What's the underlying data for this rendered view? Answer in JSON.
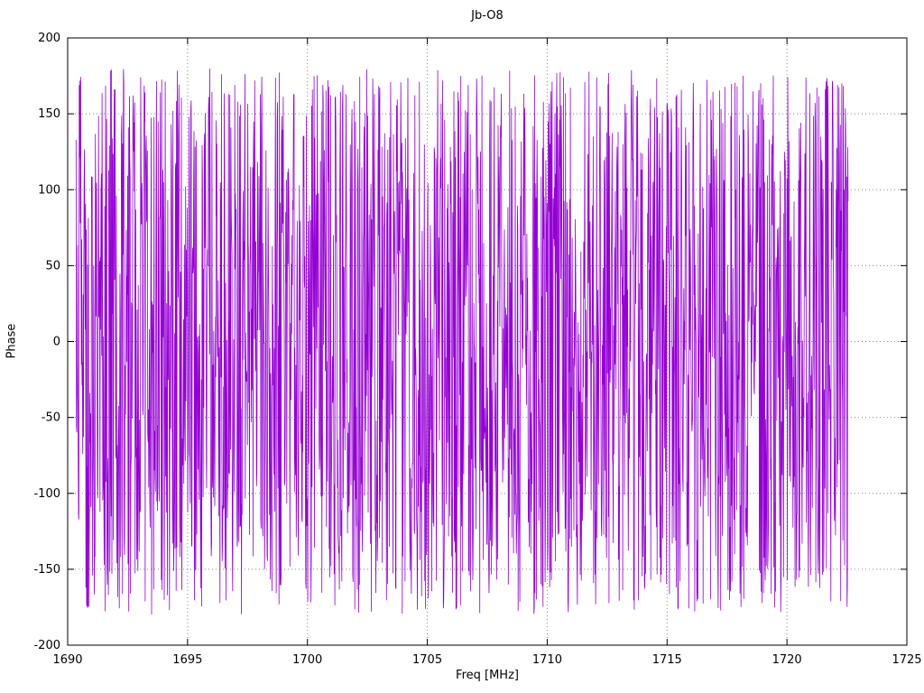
{
  "chart_data": {
    "type": "line",
    "title": "Jb-O8",
    "xlabel": "Freq [MHz]",
    "ylabel": "Phase",
    "xlim": [
      1690,
      1725
    ],
    "ylim": [
      -200,
      200
    ],
    "x_ticks": [
      1690,
      1695,
      1700,
      1705,
      1710,
      1715,
      1720,
      1725
    ],
    "x_tick_labels": [
      "1690",
      "1695",
      "1700",
      "1705",
      "1710",
      "1715",
      "1720",
      "1725"
    ],
    "y_ticks": [
      -200,
      -150,
      -100,
      -50,
      0,
      50,
      100,
      150,
      200
    ],
    "y_tick_labels": [
      "-200",
      "-150",
      "-100",
      "-50",
      "0",
      "50",
      "100",
      "150",
      "200"
    ],
    "grid": true,
    "grid_style": "dotted",
    "grid_color": "#888888",
    "legend": false,
    "background": "#ffffff",
    "border_color": "#000000",
    "series": [
      {
        "name": "phase",
        "color": "#9400D3",
        "x_start": 1690.35,
        "x_end": 1722.55,
        "n_points": 2200,
        "y_min": -180,
        "y_max": 180,
        "pattern": "wrapped-phase-noise",
        "description": "Densely wrapped interferometric phase vs frequency; values fill -180..180 deg across the whole band",
        "seed": 1234567
      }
    ]
  }
}
